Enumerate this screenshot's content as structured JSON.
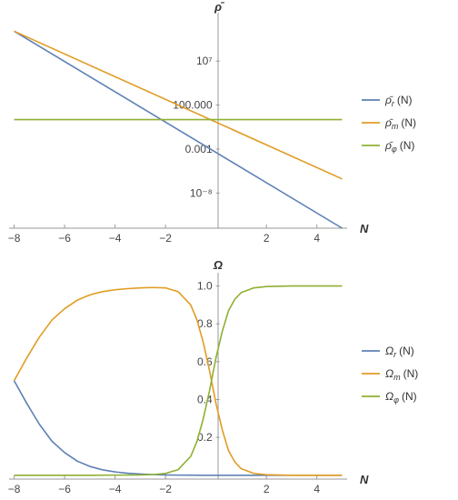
{
  "chart_data": [
    {
      "type": "line",
      "ylabel": "ρ̄",
      "xlabel": "N",
      "yscale": "log10",
      "xlim": [
        -8.2,
        5.2
      ],
      "ylim_log10": [
        -12,
        12.5
      ],
      "xticks": [
        -8,
        -6,
        -4,
        -2,
        2,
        4
      ],
      "xtick_labels": [
        "−8",
        "−6",
        "−4",
        "−2",
        "2",
        "4"
      ],
      "yticks_log10": [
        7,
        2,
        -3,
        -8
      ],
      "ytick_labels": [
        "10⁷",
        "100.000",
        "0.001",
        "10⁻⁸"
      ],
      "legend_position": "right",
      "legend_entries": [
        {
          "main": "ρ̄",
          "sub": "r",
          "suffix": "(N)"
        },
        {
          "main": "ρ̄",
          "sub": "m",
          "suffix": "(N)"
        },
        {
          "main": "ρ̄",
          "sub": "φ",
          "suffix": "(N)"
        }
      ],
      "series": [
        {
          "key": "r",
          "color": "#5E81B5",
          "x": [
            -8,
            5
          ],
          "log10_y": [
            10.4,
            -12.0
          ]
        },
        {
          "key": "m",
          "color": "#E19C24",
          "x": [
            -8,
            5
          ],
          "log10_y": [
            10.4,
            -6.4
          ]
        },
        {
          "key": "phi",
          "color": "#8FB032",
          "x": [
            -8,
            5
          ],
          "log10_y": [
            0.35,
            0.35
          ]
        }
      ]
    },
    {
      "type": "line",
      "ylabel": "Ω",
      "xlabel": "N",
      "xlim": [
        -8.2,
        5.2
      ],
      "ylim": [
        -0.02,
        1.07
      ],
      "xticks": [
        -8,
        -6,
        -4,
        -2,
        2,
        4
      ],
      "xtick_labels": [
        "−8",
        "−6",
        "−4",
        "−2",
        "2",
        "4"
      ],
      "yticks": [
        0.2,
        0.4,
        0.6,
        0.8,
        1.0
      ],
      "ytick_labels": [
        "0.2",
        "0.4",
        "0.6",
        "0.8",
        "1.0"
      ],
      "legend_position": "right",
      "legend_entries": [
        {
          "main": "Ω",
          "sub": "r",
          "suffix": "(N)"
        },
        {
          "main": "Ω",
          "sub": "m",
          "suffix": "(N)"
        },
        {
          "main": "Ω",
          "sub": "φ",
          "suffix": "(N)"
        }
      ],
      "series": [
        {
          "key": "r",
          "color": "#5E81B5",
          "x": [
            -8,
            -7.5,
            -7,
            -6.5,
            -6,
            -5.5,
            -5,
            -4.5,
            -4,
            -3.5,
            -3,
            -2.5,
            -2,
            -1.5,
            -1,
            -0.5,
            0,
            0.5,
            1,
            2,
            3,
            4,
            5
          ],
          "y": [
            0.5,
            0.38,
            0.27,
            0.18,
            0.12,
            0.075,
            0.047,
            0.029,
            0.018,
            0.011,
            0.007,
            0.004,
            0.002,
            0.001,
            0.0005,
            0,
            0,
            0,
            0,
            0,
            0,
            0,
            0
          ]
        },
        {
          "key": "m",
          "color": "#E19C24",
          "x": [
            -8,
            -7.5,
            -7,
            -6.5,
            -6,
            -5.5,
            -5,
            -4.5,
            -4,
            -3.5,
            -3,
            -2.5,
            -2,
            -1.5,
            -1,
            -0.75,
            -0.5,
            -0.25,
            0,
            0.25,
            0.5,
            0.75,
            1,
            1.5,
            2,
            3,
            4,
            5
          ],
          "y": [
            0.5,
            0.62,
            0.73,
            0.82,
            0.88,
            0.925,
            0.953,
            0.97,
            0.98,
            0.986,
            0.99,
            0.992,
            0.99,
            0.97,
            0.9,
            0.82,
            0.7,
            0.55,
            0.38,
            0.24,
            0.13,
            0.07,
            0.035,
            0.01,
            0.003,
            0,
            0,
            0
          ]
        },
        {
          "key": "phi",
          "color": "#8FB032",
          "x": [
            -8,
            -7,
            -6,
            -5,
            -4,
            -3,
            -2.5,
            -2,
            -1.5,
            -1,
            -0.75,
            -0.5,
            -0.25,
            0,
            0.25,
            0.5,
            0.75,
            1,
            1.5,
            2,
            3,
            4,
            5
          ],
          "y": [
            0,
            0,
            0,
            0,
            0.001,
            0.002,
            0.004,
            0.01,
            0.03,
            0.1,
            0.18,
            0.3,
            0.45,
            0.62,
            0.76,
            0.87,
            0.93,
            0.965,
            0.99,
            0.997,
            1.0,
            1.0,
            1.0
          ]
        }
      ]
    }
  ]
}
